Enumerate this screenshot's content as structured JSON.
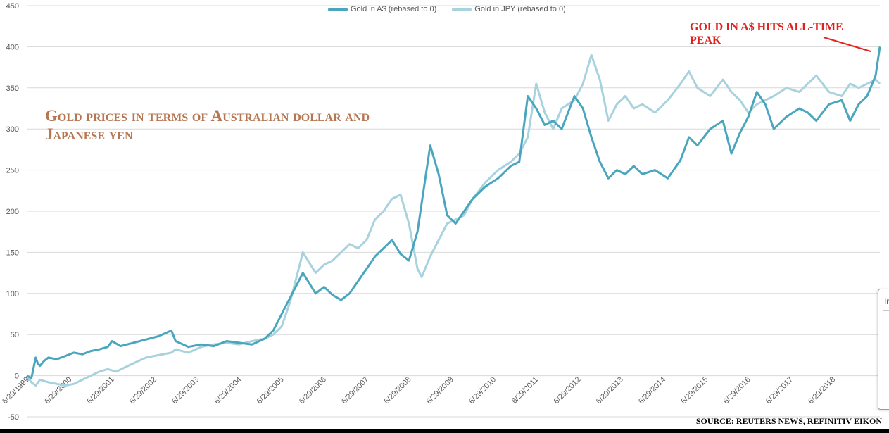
{
  "chart_data": {
    "type": "line",
    "title": "Gold prices in terms of Australian dollar and Japanese yen",
    "annotation": "GOLD IN A$ HITS ALL-TIME PEAK",
    "source": "SOURCE: REUTERS NEWS, REFINITIV EIKON",
    "ylim": [
      -50,
      450
    ],
    "y_ticks": [
      -50,
      0,
      50,
      100,
      150,
      200,
      250,
      300,
      350,
      400,
      450
    ],
    "x_tick_labels": [
      "6/29/1999",
      "6/29/2000",
      "6/29/2001",
      "6/29/2002",
      "6/29/2003",
      "6/29/2004",
      "6/29/2005",
      "6/29/2006",
      "6/29/2007",
      "6/29/2008",
      "6/29/2009",
      "6/29/2010",
      "6/29/2011",
      "6/29/2012",
      "6/29/2013",
      "6/29/2014",
      "6/29/2015",
      "6/29/2016",
      "6/29/2017",
      "6/29/2018"
    ],
    "xlim": [
      1999.49,
      2019.6
    ],
    "grid": true,
    "legend_position": "top-center",
    "colors": {
      "aud": "#4aa6bd",
      "jpy": "#a8d2de",
      "grid": "#d9d9d9",
      "axis_text": "#595959",
      "title": "#b67651",
      "annotation": "#e1211c"
    },
    "series": [
      {
        "name": "Gold in A$ (rebased to 0)",
        "color": "#4aa6bd",
        "x": [
          1999.49,
          1999.6,
          1999.7,
          1999.75,
          1999.8,
          1999.9,
          2000.0,
          2000.2,
          2000.4,
          2000.6,
          2000.8,
          2001.0,
          2001.2,
          2001.4,
          2001.5,
          2001.7,
          2002.0,
          2002.3,
          2002.6,
          2002.9,
          2003.0,
          2003.3,
          2003.6,
          2003.9,
          2004.2,
          2004.5,
          2004.8,
          2005.1,
          2005.3,
          2005.5,
          2005.7,
          2005.9,
          2006.0,
          2006.3,
          2006.5,
          2006.7,
          2006.9,
          2007.1,
          2007.3,
          2007.5,
          2007.7,
          2007.9,
          2008.1,
          2008.3,
          2008.5,
          2008.7,
          2008.8,
          2009.0,
          2009.2,
          2009.4,
          2009.6,
          2009.8,
          2010.0,
          2010.3,
          2010.6,
          2010.9,
          2011.1,
          2011.3,
          2011.5,
          2011.7,
          2011.9,
          2012.1,
          2012.4,
          2012.6,
          2012.8,
          2013.0,
          2013.2,
          2013.4,
          2013.6,
          2013.8,
          2014.0,
          2014.3,
          2014.6,
          2014.9,
          2015.1,
          2015.3,
          2015.6,
          2015.9,
          2016.1,
          2016.3,
          2016.5,
          2016.7,
          2016.9,
          2017.1,
          2017.4,
          2017.7,
          2017.9,
          2018.1,
          2018.4,
          2018.7,
          2018.9,
          2019.1,
          2019.3,
          2019.5,
          2019.6
        ],
        "values": [
          0,
          -3,
          22,
          15,
          12,
          18,
          22,
          20,
          24,
          28,
          26,
          30,
          32,
          35,
          42,
          36,
          40,
          44,
          48,
          55,
          42,
          35,
          38,
          36,
          42,
          40,
          38,
          45,
          55,
          75,
          95,
          115,
          125,
          100,
          108,
          98,
          92,
          100,
          115,
          130,
          145,
          155,
          165,
          148,
          140,
          175,
          210,
          280,
          245,
          195,
          185,
          200,
          215,
          230,
          240,
          255,
          260,
          340,
          325,
          305,
          310,
          300,
          340,
          325,
          290,
          260,
          240,
          250,
          245,
          255,
          245,
          250,
          240,
          262,
          290,
          280,
          300,
          310,
          270,
          295,
          315,
          345,
          330,
          300,
          315,
          325,
          320,
          310,
          330,
          335,
          310,
          330,
          340,
          365,
          400
        ]
      },
      {
        "name": "Gold in JPY (rebased to 0)",
        "color": "#a8d2de",
        "x": [
          1999.49,
          1999.6,
          1999.7,
          1999.8,
          2000.0,
          2000.2,
          2000.4,
          2000.6,
          2000.8,
          2001.0,
          2001.2,
          2001.4,
          2001.6,
          2001.8,
          2002.0,
          2002.3,
          2002.6,
          2002.9,
          2003.0,
          2003.3,
          2003.6,
          2003.9,
          2004.2,
          2004.5,
          2004.8,
          2005.1,
          2005.3,
          2005.5,
          2005.7,
          2005.9,
          2006.0,
          2006.3,
          2006.5,
          2006.7,
          2006.9,
          2007.1,
          2007.3,
          2007.5,
          2007.7,
          2007.9,
          2008.1,
          2008.3,
          2008.5,
          2008.7,
          2008.8,
          2009.0,
          2009.2,
          2009.4,
          2009.6,
          2009.8,
          2010.0,
          2010.3,
          2010.6,
          2010.9,
          2011.1,
          2011.3,
          2011.5,
          2011.7,
          2011.9,
          2012.1,
          2012.4,
          2012.6,
          2012.8,
          2013.0,
          2013.2,
          2013.4,
          2013.6,
          2013.8,
          2014.0,
          2014.3,
          2014.6,
          2014.9,
          2015.1,
          2015.3,
          2015.6,
          2015.9,
          2016.1,
          2016.3,
          2016.5,
          2016.7,
          2016.9,
          2017.1,
          2017.4,
          2017.7,
          2017.9,
          2018.1,
          2018.4,
          2018.7,
          2018.9,
          2019.1,
          2019.3,
          2019.5,
          2019.6
        ],
        "values": [
          0,
          -8,
          -12,
          -5,
          -8,
          -10,
          -12,
          -10,
          -5,
          0,
          5,
          8,
          5,
          10,
          15,
          22,
          25,
          28,
          32,
          28,
          35,
          38,
          40,
          38,
          42,
          45,
          50,
          60,
          90,
          130,
          150,
          125,
          135,
          140,
          150,
          160,
          155,
          165,
          190,
          200,
          215,
          220,
          185,
          130,
          120,
          145,
          165,
          185,
          190,
          195,
          215,
          235,
          250,
          260,
          270,
          290,
          355,
          320,
          300,
          325,
          335,
          355,
          390,
          360,
          310,
          330,
          340,
          325,
          330,
          320,
          335,
          355,
          370,
          350,
          340,
          360,
          345,
          335,
          320,
          330,
          335,
          340,
          350,
          345,
          355,
          365,
          345,
          340,
          355,
          350,
          355,
          360,
          355
        ]
      }
    ]
  },
  "side_panel": {
    "label": "In"
  }
}
